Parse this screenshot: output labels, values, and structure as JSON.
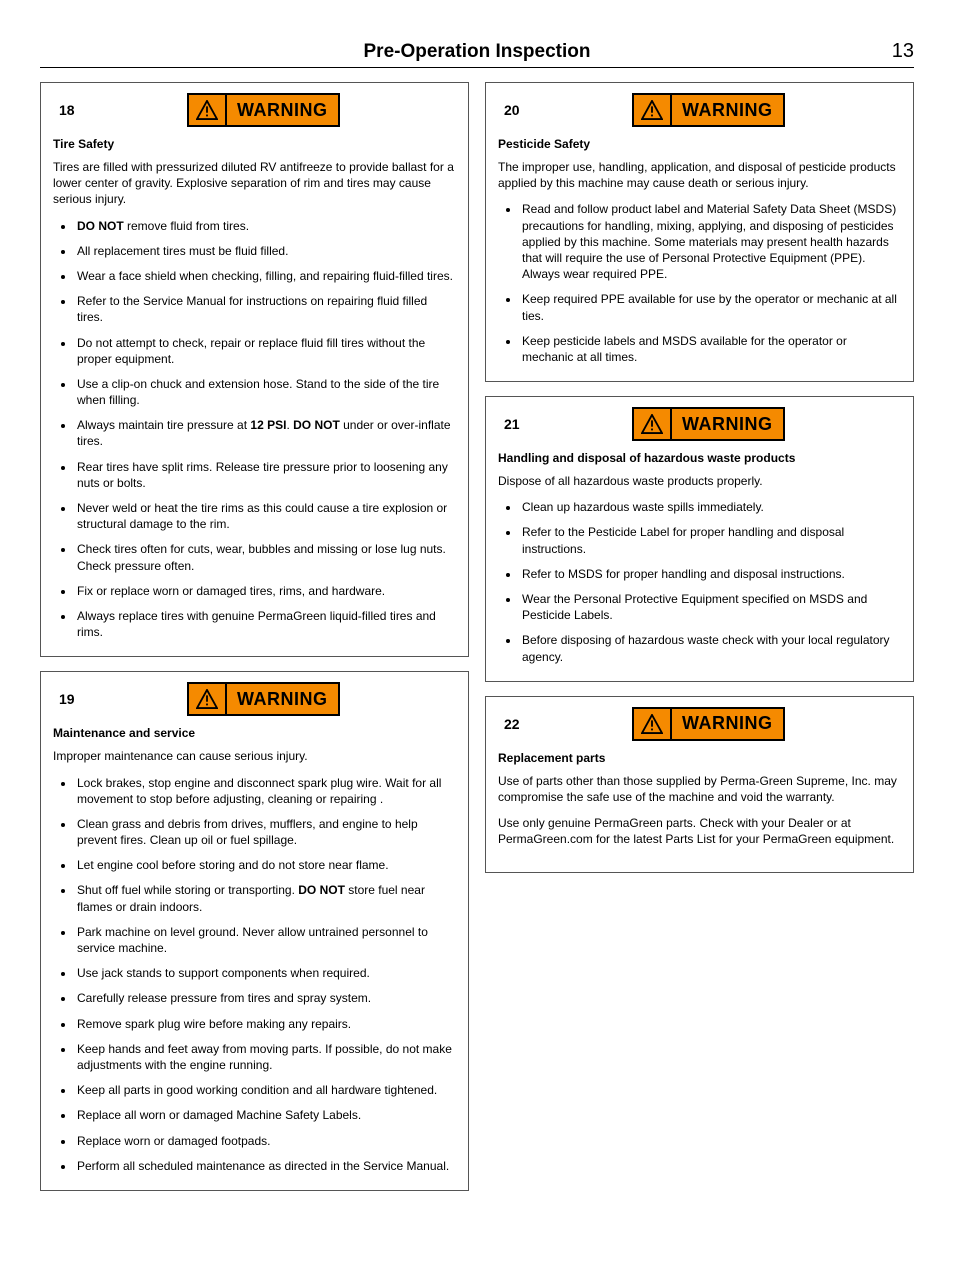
{
  "page": {
    "title": "Pre-Operation Inspection",
    "number": "13"
  },
  "warning_label": "WARNING",
  "colors": {
    "warning_bg": "#f58a00",
    "border": "#000000",
    "text": "#000000"
  },
  "left": [
    {
      "num": "18",
      "subhead": "Tire Safety",
      "intro": "Tires are filled with pressurized diluted RV antifreeze to provide ballast for a lower center of gravity. Explosive separation of rim and tires may cause serious injury.",
      "bullets": [
        [
          {
            "b": true,
            "t": "DO NOT"
          },
          {
            "t": " remove fluid from tires."
          }
        ],
        [
          {
            "t": "All replacement tires must be fluid filled."
          }
        ],
        [
          {
            "t": "Wear a face shield when checking, filling, and repairing fluid-filled tires."
          }
        ],
        [
          {
            "t": "Refer to the Service Manual for instructions on repairing fluid filled tires."
          }
        ],
        [
          {
            "t": "Do not attempt to check, repair or replace fluid fill tires without the proper equipment."
          }
        ],
        [
          {
            "t": "Use a clip-on chuck  and extension hose. Stand to the side of the tire when filling."
          }
        ],
        [
          {
            "t": "Always maintain tire pressure at "
          },
          {
            "b": true,
            "t": "12 PSI"
          },
          {
            "t": ". "
          },
          {
            "b": true,
            "t": "DO NOT"
          },
          {
            "t": " under or over-inflate tires."
          }
        ],
        [
          {
            "t": "Rear tires have split rims. Release tire pressure prior to loosening any nuts or bolts."
          }
        ],
        [
          {
            "t": "Never weld or heat the tire rims as this could cause a tire explosion or structural damage to the rim."
          }
        ],
        [
          {
            "t": "Check tires often for cuts, wear, bubbles and missing or lose lug nuts. Check pressure often."
          }
        ],
        [
          {
            "t": "Fix or replace worn or damaged tires, rims, and hardware."
          }
        ],
        [
          {
            "t": "Always replace tires with genuine PermaGreen liquid-filled tires and rims."
          }
        ]
      ]
    },
    {
      "num": "19",
      "subhead": "Maintenance and service",
      "intro": "Improper maintenance can cause serious injury.",
      "bullets": [
        [
          {
            "t": "Lock brakes, stop engine and disconnect spark plug wire. Wait for all movement to stop before adjusting, cleaning or repairing ."
          }
        ],
        [
          {
            "t": "Clean grass and debris from drives, mufflers, and engine to help prevent fires. Clean up oil or fuel spillage."
          }
        ],
        [
          {
            "t": "Let engine cool before storing and do not store near flame."
          }
        ],
        [
          {
            "t": "Shut off fuel while storing or transporting. "
          },
          {
            "b": true,
            "t": "DO NOT"
          },
          {
            "t": " store fuel near flames or drain indoors."
          }
        ],
        [
          {
            "t": "Park machine on level ground. Never allow untrained personnel to service machine."
          }
        ],
        [
          {
            "t": "Use jack stands to support components when required."
          }
        ],
        [
          {
            "t": "Carefully release pressure from tires and spray system."
          }
        ],
        [
          {
            "t": "Remove spark plug wire before making any repairs."
          }
        ],
        [
          {
            "t": "Keep hands and feet away from moving parts. If possible, do not make adjustments with the engine running."
          }
        ],
        [
          {
            "t": "Keep all parts in good working condition and all hardware tightened."
          }
        ],
        [
          {
            "t": "Replace all worn or damaged Machine Safety Labels."
          }
        ],
        [
          {
            "t": "Replace worn or damaged footpads."
          }
        ],
        [
          {
            "t": "Perform all scheduled maintenance as directed in the Service Manual."
          }
        ]
      ]
    }
  ],
  "right": [
    {
      "num": "20",
      "subhead": "Pesticide Safety",
      "intro": "The improper use, handling, application, and disposal of pesticide products applied by this machine may cause death or serious injury.",
      "bullets": [
        [
          {
            "t": "Read and follow product label and Material Safety Data Sheet (MSDS) precautions for handling, mixing, applying, and disposing of pesticides applied by this machine. Some materials may present health hazards that will require the use of Personal Protective Equipment (PPE). Always wear required PPE."
          }
        ],
        [
          {
            "t": " Keep required PPE available for use by the operator or mechanic at all ties."
          }
        ],
        [
          {
            "t": "Keep pesticide labels and MSDS available for the operator or mechanic at all times."
          }
        ]
      ]
    },
    {
      "num": "21",
      "subhead": "Handling and disposal of hazardous waste products",
      "intro": "Dispose of all hazardous waste products properly.",
      "bullets": [
        [
          {
            "t": "Clean up hazardous waste spills immediately."
          }
        ],
        [
          {
            "t": "Refer to the Pesticide Label for proper handling and disposal instructions."
          }
        ],
        [
          {
            "t": "Refer to MSDS for proper handling and disposal instructions."
          }
        ],
        [
          {
            "t": "Wear the Personal Protective Equipment specified on MSDS and Pesticide Labels."
          }
        ],
        [
          {
            "t": "Before disposing of hazardous waste check with your local regulatory agency."
          }
        ]
      ]
    },
    {
      "num": "22",
      "subhead": "Replacement parts",
      "intro": "Use of parts other than those supplied by Perma-Green Supreme, Inc. may compromise the safe use of the machine and void the warranty.",
      "intro2": "Use only genuine PermaGreen parts. Check with your Dealer or at PermaGreen.com for the latest Parts List for your PermaGreen equipment.",
      "bullets": []
    }
  ]
}
